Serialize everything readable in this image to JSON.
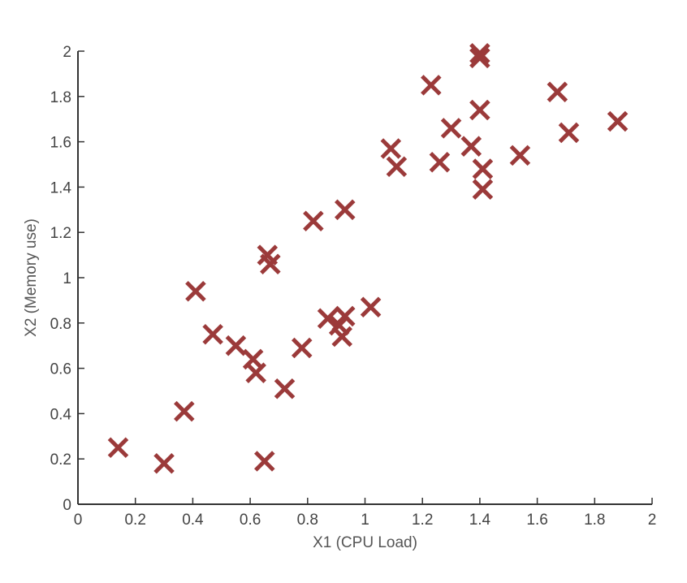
{
  "chart_data": {
    "type": "scatter",
    "xlabel": "X1 (CPU Load)",
    "ylabel": "X2 (Memory use)",
    "xlim": [
      0,
      2
    ],
    "ylim": [
      0,
      2
    ],
    "xticks": [
      "0",
      "0.2",
      "0.4",
      "0.6",
      "0.8",
      "1",
      "1.2",
      "1.4",
      "1.6",
      "1.8",
      "2"
    ],
    "yticks": [
      "0",
      "0.2",
      "0.4",
      "0.6",
      "0.8",
      "1",
      "1.2",
      "1.4",
      "1.6",
      "1.8",
      "2"
    ],
    "grid": false,
    "marker": "x",
    "marker_color": "#9b3a3a",
    "points": [
      [
        0.14,
        0.25
      ],
      [
        0.3,
        0.18
      ],
      [
        0.37,
        0.41
      ],
      [
        0.41,
        0.94
      ],
      [
        0.47,
        0.75
      ],
      [
        0.55,
        0.7
      ],
      [
        0.61,
        0.64
      ],
      [
        0.62,
        0.58
      ],
      [
        0.65,
        0.19
      ],
      [
        0.66,
        1.1
      ],
      [
        0.67,
        1.06
      ],
      [
        0.72,
        0.51
      ],
      [
        0.78,
        0.69
      ],
      [
        0.82,
        1.25
      ],
      [
        0.87,
        0.82
      ],
      [
        0.91,
        0.79
      ],
      [
        0.92,
        0.74
      ],
      [
        0.93,
        0.83
      ],
      [
        0.93,
        1.3
      ],
      [
        1.02,
        0.87
      ],
      [
        1.09,
        1.57
      ],
      [
        1.11,
        1.49
      ],
      [
        1.23,
        1.85
      ],
      [
        1.26,
        1.51
      ],
      [
        1.3,
        1.66
      ],
      [
        1.37,
        1.58
      ],
      [
        1.4,
        1.99
      ],
      [
        1.4,
        1.97
      ],
      [
        1.4,
        1.74
      ],
      [
        1.41,
        1.48
      ],
      [
        1.41,
        1.39
      ],
      [
        1.54,
        1.54
      ],
      [
        1.67,
        1.82
      ],
      [
        1.71,
        1.64
      ],
      [
        1.88,
        1.69
      ]
    ]
  }
}
